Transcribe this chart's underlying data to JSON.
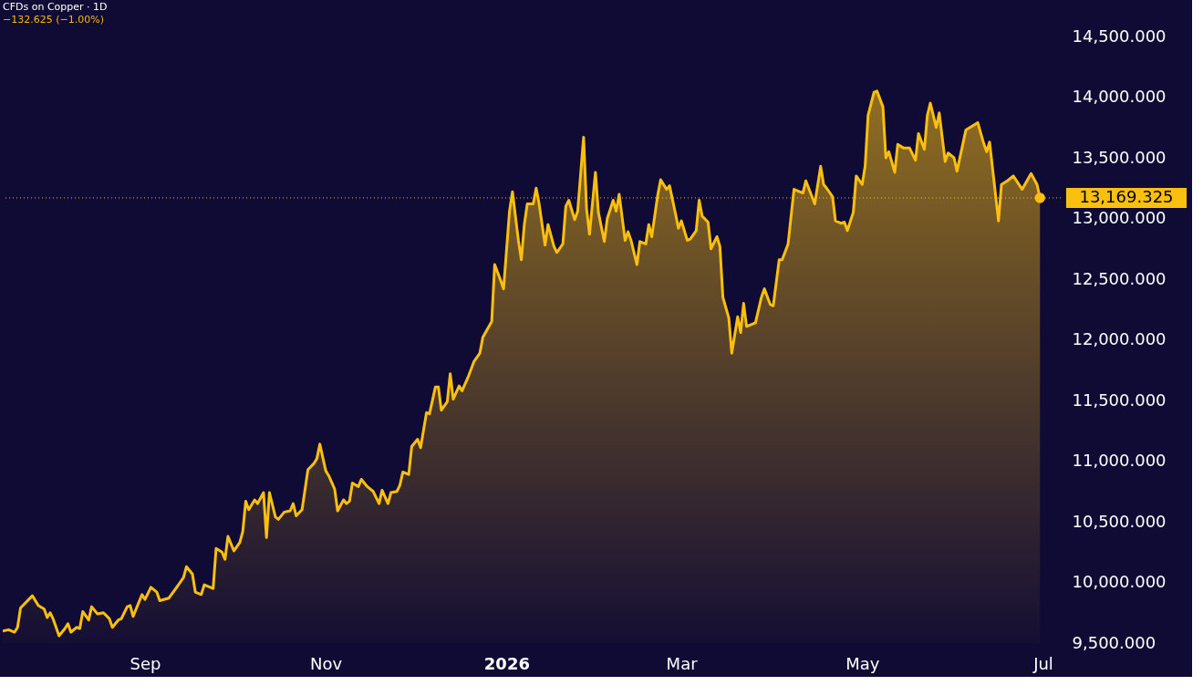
{
  "chart_data": {
    "type": "area",
    "title": "CFDs on Copper · 1D",
    "subtitle": "−132.625 (−1.00%)",
    "x": [
      "2025-07-15",
      "2025-07-17",
      "2025-07-19",
      "2025-07-20",
      "2025-07-21",
      "2025-07-25",
      "2025-07-27",
      "2025-07-29",
      "2025-07-30",
      "2025-07-31",
      "2025-08-01",
      "2025-08-03",
      "2025-08-05",
      "2025-08-06",
      "2025-08-07",
      "2025-08-09",
      "2025-08-10",
      "2025-08-11",
      "2025-08-13",
      "2025-08-14",
      "2025-08-16",
      "2025-08-18",
      "2025-08-20",
      "2025-08-21",
      "2025-08-23",
      "2025-08-24",
      "2025-08-26",
      "2025-08-27",
      "2025-08-28",
      "2025-08-31",
      "2025-09-01",
      "2025-09-03",
      "2025-09-05",
      "2025-09-06",
      "2025-09-09",
      "2025-09-12",
      "2025-09-14",
      "2025-09-15",
      "2025-09-17",
      "2025-09-18",
      "2025-09-20",
      "2025-09-21",
      "2025-09-24",
      "2025-09-25",
      "2025-09-27",
      "2025-09-28",
      "2025-09-29",
      "2025-10-01",
      "2025-10-03",
      "2025-10-04",
      "2025-10-05",
      "2025-10-06",
      "2025-10-08",
      "2025-10-09",
      "2025-10-11",
      "2025-10-12",
      "2025-10-13",
      "2025-10-15",
      "2025-10-16",
      "2025-10-18",
      "2025-10-20",
      "2025-10-21",
      "2025-10-22",
      "2025-10-24",
      "2025-10-26",
      "2025-10-28",
      "2025-10-29",
      "2025-10-30",
      "2025-11-01",
      "2025-11-02",
      "2025-11-04",
      "2025-11-05",
      "2025-11-07",
      "2025-11-08",
      "2025-11-09",
      "2025-11-10",
      "2025-11-12",
      "2025-11-13",
      "2025-11-15",
      "2025-11-17",
      "2025-11-19",
      "2025-11-20",
      "2025-11-22",
      "2025-11-23",
      "2025-11-25",
      "2025-11-26",
      "2025-11-27",
      "2025-11-29",
      "2025-11-30",
      "2025-12-02",
      "2025-12-03",
      "2025-12-05",
      "2025-12-06",
      "2025-12-08",
      "2025-12-09",
      "2025-12-10",
      "2025-12-12",
      "2025-12-13",
      "2025-12-14",
      "2025-12-16",
      "2025-12-17",
      "2025-12-19",
      "2025-12-21",
      "2025-12-23",
      "2025-12-24",
      "2025-12-27",
      "2025-12-28",
      "2025-12-30",
      "2025-12-31",
      "2026-01-02",
      "2026-01-03",
      "2026-01-05",
      "2026-01-06",
      "2026-01-07",
      "2026-01-08",
      "2026-01-10",
      "2026-01-11",
      "2026-01-12",
      "2026-01-14",
      "2026-01-15",
      "2026-01-17",
      "2026-01-18",
      "2026-01-20",
      "2026-01-21",
      "2026-01-22",
      "2026-01-24",
      "2026-01-25",
      "2026-01-27",
      "2026-01-28",
      "2026-01-29",
      "2026-01-31",
      "2026-02-01",
      "2026-02-03",
      "2026-02-04",
      "2026-02-06",
      "2026-02-07",
      "2026-02-08",
      "2026-02-10",
      "2026-02-11",
      "2026-02-12",
      "2026-02-14",
      "2026-02-15",
      "2026-02-17",
      "2026-02-18",
      "2026-02-19",
      "2026-02-21",
      "2026-02-22",
      "2026-02-24",
      "2026-02-25",
      "2026-02-27",
      "2026-02-28",
      "2026-03-01",
      "2026-03-03",
      "2026-03-04",
      "2026-03-06",
      "2026-03-07",
      "2026-03-08",
      "2026-03-10",
      "2026-03-11",
      "2026-03-13",
      "2026-03-14",
      "2026-03-15",
      "2026-03-17",
      "2026-03-18",
      "2026-03-20",
      "2026-03-21",
      "2026-03-22",
      "2026-03-23",
      "2026-03-26",
      "2026-03-28",
      "2026-03-29",
      "2026-03-31",
      "2026-04-01",
      "2026-04-03",
      "2026-04-04",
      "2026-04-06",
      "2026-04-08",
      "2026-04-11",
      "2026-04-12",
      "2026-04-15",
      "2026-04-17",
      "2026-04-18",
      "2026-04-19",
      "2026-04-21",
      "2026-04-22",
      "2026-04-24",
      "2026-04-25",
      "2026-04-26",
      "2026-04-28",
      "2026-04-29",
      "2026-05-01",
      "2026-05-02",
      "2026-05-03",
      "2026-05-05",
      "2026-05-06",
      "2026-05-08",
      "2026-05-09",
      "2026-05-10",
      "2026-05-12",
      "2026-05-13",
      "2026-05-15",
      "2026-05-17",
      "2026-05-19",
      "2026-05-20",
      "2026-05-22",
      "2026-05-23",
      "2026-05-24",
      "2026-05-26",
      "2026-05-27",
      "2026-05-29",
      "2026-05-30",
      "2026-06-01",
      "2026-06-02",
      "2026-06-05",
      "2026-06-09",
      "2026-06-11",
      "2026-06-12",
      "2026-06-13",
      "2026-06-16",
      "2026-06-17",
      "2026-06-19",
      "2026-06-21",
      "2026-06-24",
      "2026-06-27",
      "2026-06-29",
      "2026-06-30"
    ],
    "series": [
      {
        "color": "#fbbf10",
        "values": [
          9600,
          9610,
          9590,
          9630,
          9790,
          9890,
          9810,
          9780,
          9710,
          9750,
          9700,
          9560,
          9620,
          9660,
          9590,
          9630,
          9620,
          9760,
          9690,
          9800,
          9740,
          9750,
          9700,
          9630,
          9690,
          9700,
          9800,
          9810,
          9720,
          9900,
          9860,
          9960,
          9920,
          9850,
          9870,
          9970,
          10040,
          10130,
          10070,
          9920,
          9900,
          9980,
          9950,
          10280,
          10250,
          10190,
          10380,
          10260,
          10330,
          10420,
          10670,
          10600,
          10680,
          10650,
          10740,
          10370,
          10740,
          10540,
          10520,
          10580,
          10590,
          10650,
          10550,
          10600,
          10930,
          10980,
          11020,
          11140,
          10920,
          10880,
          10770,
          10590,
          10680,
          10650,
          10670,
          10820,
          10790,
          10850,
          10790,
          10750,
          10650,
          10760,
          10650,
          10740,
          10750,
          10800,
          10910,
          10890,
          11120,
          11180,
          11110,
          11400,
          11390,
          11610,
          11610,
          11420,
          11490,
          11720,
          11510,
          11620,
          11580,
          11690,
          11820,
          11890,
          12020,
          12150,
          12620,
          12490,
          12420,
          13060,
          13220,
          12820,
          12660,
          12950,
          13120,
          13120,
          13250,
          13120,
          12780,
          12950,
          12770,
          12720,
          12790,
          13100,
          13150,
          12990,
          13060,
          13670,
          13080,
          12870,
          13380,
          13050,
          12810,
          13000,
          13150,
          13060,
          13200,
          12820,
          12890,
          12820,
          12620,
          12810,
          12790,
          12950,
          12850,
          13190,
          13320,
          13240,
          13270,
          13040,
          12920,
          12980,
          12820,
          12830,
          12900,
          13150,
          13020,
          12970,
          12750,
          12850,
          12770,
          12350,
          12180,
          11890,
          12190,
          12060,
          12300,
          12110,
          12140,
          12350,
          12420,
          12290,
          12280,
          12660,
          12660,
          12790,
          13240,
          13210,
          13310,
          13120,
          13430,
          13280,
          13250,
          13180,
          12980,
          12960,
          12970,
          12900,
          13050,
          13350,
          13280,
          13430,
          13850,
          14040,
          14050,
          13920,
          13500,
          13550,
          13380,
          13610,
          13580,
          13580,
          13480,
          13700,
          13570,
          13850,
          13950,
          13750,
          13870,
          13470,
          13540,
          13500,
          13390,
          13730,
          13790,
          13620,
          13550,
          13630,
          12980,
          13280,
          13310,
          13350,
          13240,
          13370,
          13280,
          13169.325
        ]
      }
    ],
    "xlim": [
      "2025-07-15",
      "2026-07-07"
    ],
    "xticks": [
      {
        "value": "2025-09-01",
        "label": "Sep"
      },
      {
        "value": "2025-11-01",
        "label": "Nov"
      },
      {
        "value": "2026-01-01",
        "label": "2026"
      },
      {
        "value": "2026-03-01",
        "label": "Mar"
      },
      {
        "value": "2026-05-01",
        "label": "May"
      },
      {
        "value": "2026-07-01",
        "label": "Jul"
      }
    ],
    "ylim": [
      9500,
      14500
    ],
    "yticks": [
      {
        "value": 9500,
        "label": "9,500.000"
      },
      {
        "value": 10000,
        "label": "10,000.000"
      },
      {
        "value": 10500,
        "label": "10,500.000"
      },
      {
        "value": 11000,
        "label": "11,000.000"
      },
      {
        "value": 11500,
        "label": "11,500.000"
      },
      {
        "value": 12000,
        "label": "12,000.000"
      },
      {
        "value": 12500,
        "label": "12,500.000"
      },
      {
        "value": 13000,
        "label": "13,000.000"
      },
      {
        "value": 13500,
        "label": "13,500.000"
      },
      {
        "value": 14000,
        "label": "14,000.000"
      },
      {
        "value": 14500,
        "label": "14,500.000"
      }
    ],
    "ref_lines": [
      {
        "axis": "y",
        "value": 13169.325,
        "color": "#fbbf10",
        "line_style": "dotted"
      }
    ],
    "annotations": [
      {
        "text": "13,169.325",
        "x": "2026-06-30",
        "y": 13169.325
      }
    ]
  }
}
